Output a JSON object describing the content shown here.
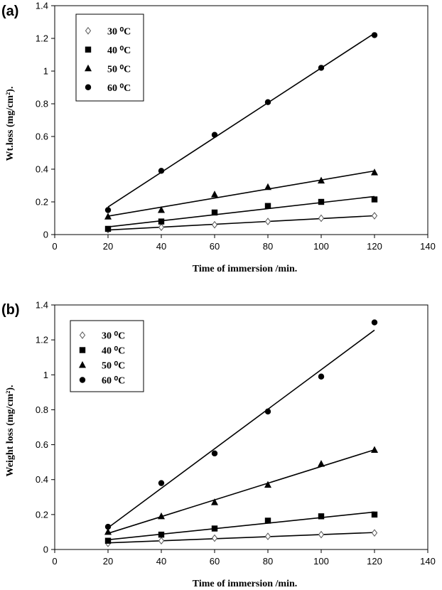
{
  "chart_data": [
    {
      "type": "scatter",
      "panel_label": "(a)",
      "xlabel": "Time of immersion /min.",
      "ylabel": "Wt.loss (mg/cm²).",
      "xlim": [
        0,
        140
      ],
      "ylim": [
        0,
        1.4
      ],
      "xticks": [
        "0",
        "20",
        "40",
        "60",
        "80",
        "100",
        "120",
        "140"
      ],
      "yticks": [
        "0",
        "0.2",
        "0.4",
        "0.6",
        "0.8",
        "1",
        "1.2",
        "1.4"
      ],
      "grid": false,
      "legend_position": "top-left",
      "trendlines": "linear",
      "series": [
        {
          "name": "30 ⁰C",
          "marker": "diamond-open",
          "x": [
            20,
            40,
            60,
            80,
            100,
            120
          ],
          "y": [
            0.03,
            0.045,
            0.06,
            0.08,
            0.1,
            0.115
          ]
        },
        {
          "name": "40 ⁰C",
          "marker": "square",
          "x": [
            20,
            40,
            60,
            80,
            100,
            120
          ],
          "y": [
            0.035,
            0.08,
            0.135,
            0.175,
            0.2,
            0.215
          ]
        },
        {
          "name": "50 ⁰C",
          "marker": "triangle",
          "x": [
            20,
            40,
            60,
            80,
            100,
            120
          ],
          "y": [
            0.11,
            0.15,
            0.245,
            0.29,
            0.33,
            0.38
          ]
        },
        {
          "name": "60 ⁰C",
          "marker": "circle",
          "x": [
            20,
            40,
            60,
            80,
            100,
            120
          ],
          "y": [
            0.15,
            0.39,
            0.61,
            0.81,
            1.02,
            1.22
          ]
        }
      ]
    },
    {
      "type": "scatter",
      "panel_label": "(b)",
      "xlabel": "Time of immersion /min.",
      "ylabel": "Weight loss (mg/cm²).",
      "xlim": [
        0,
        140
      ],
      "ylim": [
        0,
        1.4
      ],
      "xticks": [
        "0",
        "20",
        "40",
        "60",
        "80",
        "100",
        "120",
        "140"
      ],
      "yticks": [
        "0",
        "0.2",
        "0.4",
        "0.6",
        "0.8",
        "1",
        "1.2",
        "1.4"
      ],
      "grid": false,
      "legend_position": "top-left",
      "trendlines": "linear",
      "series": [
        {
          "name": "30 ⁰C",
          "marker": "diamond-open",
          "x": [
            20,
            40,
            60,
            80,
            100,
            120
          ],
          "y": [
            0.035,
            0.05,
            0.065,
            0.075,
            0.085,
            0.095
          ]
        },
        {
          "name": "40 ⁰C",
          "marker": "square",
          "x": [
            20,
            40,
            60,
            80,
            100,
            120
          ],
          "y": [
            0.05,
            0.085,
            0.12,
            0.165,
            0.19,
            0.2
          ]
        },
        {
          "name": "50 ⁰C",
          "marker": "triangle",
          "x": [
            20,
            40,
            60,
            80,
            100,
            120
          ],
          "y": [
            0.1,
            0.19,
            0.27,
            0.37,
            0.49,
            0.57
          ]
        },
        {
          "name": "60 ⁰C",
          "marker": "circle",
          "x": [
            20,
            40,
            60,
            80,
            100,
            120
          ],
          "y": [
            0.13,
            0.38,
            0.55,
            0.79,
            0.99,
            1.3
          ]
        }
      ]
    }
  ]
}
